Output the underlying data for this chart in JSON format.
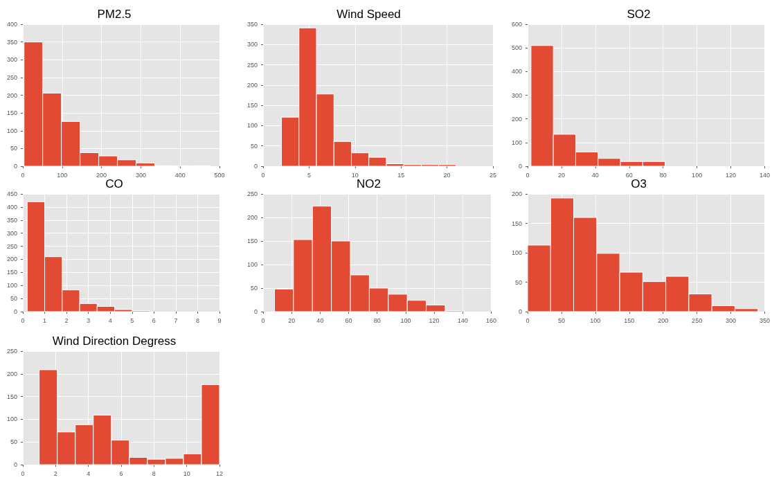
{
  "chart_data": [
    {
      "type": "histogram",
      "title": "PM2.5",
      "color": "#e24a33",
      "grid": true,
      "bins": [
        3,
        50.5,
        98,
        145.5,
        193,
        240.5,
        288,
        335.5,
        383,
        430.5,
        478
      ],
      "values": [
        350,
        206,
        126,
        38,
        29,
        18,
        9,
        1,
        1,
        1
      ],
      "xlim": [
        0,
        500
      ],
      "xticks": [
        0,
        100,
        200,
        300,
        400,
        500
      ],
      "ylim": [
        0,
        400
      ],
      "yticks": [
        0,
        50,
        100,
        150,
        200,
        250,
        300,
        350,
        400
      ]
    },
    {
      "type": "histogram",
      "title": "Wind Speed",
      "color": "#e24a33",
      "grid": true,
      "bins": [
        2,
        3.9,
        5.8,
        7.7,
        9.6,
        11.5,
        13.4,
        15.3,
        17.2,
        19.1,
        21
      ],
      "values": [
        121,
        341,
        178,
        61,
        33,
        22,
        6,
        4,
        4,
        4
      ],
      "xlim": [
        0,
        25
      ],
      "xticks": [
        0,
        5,
        10,
        15,
        20,
        25
      ],
      "ylim": [
        0,
        350
      ],
      "yticks": [
        0,
        50,
        100,
        150,
        200,
        250,
        300,
        350
      ]
    },
    {
      "type": "histogram",
      "title": "SO2",
      "color": "#e24a33",
      "grid": true,
      "bins": [
        2,
        15.2,
        28.4,
        41.6,
        54.8,
        68,
        81.2,
        94.4,
        107.6,
        120.8,
        134
      ],
      "values": [
        510,
        135,
        60,
        33,
        20,
        20,
        0,
        null,
        null,
        null
      ],
      "xlim": [
        0,
        140
      ],
      "xticks": [
        0,
        20,
        40,
        60,
        80,
        100,
        120,
        140
      ],
      "ylim": [
        0,
        600
      ],
      "yticks": [
        0,
        100,
        200,
        300,
        400,
        500,
        600
      ]
    },
    {
      "type": "histogram",
      "title": "CO",
      "color": "#e24a33",
      "grid": true,
      "bins": [
        0.2,
        1,
        1.8,
        2.6,
        3.4,
        4.2,
        5,
        5.8,
        6.6,
        7.4,
        8.2
      ],
      "values": [
        420,
        210,
        83,
        31,
        20,
        8,
        4,
        0,
        null,
        null
      ],
      "xlim": [
        0,
        9
      ],
      "xticks": [
        0,
        1,
        2,
        3,
        4,
        5,
        6,
        7,
        8,
        9
      ],
      "ylim": [
        0,
        450
      ],
      "yticks": [
        0,
        50,
        100,
        150,
        200,
        250,
        300,
        350,
        400,
        450
      ]
    },
    {
      "type": "histogram",
      "title": "NO2",
      "color": "#e24a33",
      "grid": true,
      "bins": [
        8,
        21.3,
        34.6,
        47.9,
        61.2,
        74.5,
        87.8,
        101.1,
        114.4,
        127.7,
        141
      ],
      "values": [
        48,
        153,
        224,
        150,
        78,
        50,
        37,
        24,
        14,
        2
      ],
      "xlim": [
        0,
        160
      ],
      "xticks": [
        0,
        20,
        40,
        60,
        80,
        100,
        120,
        140,
        160
      ],
      "ylim": [
        0,
        250
      ],
      "yticks": [
        0,
        50,
        100,
        150,
        200,
        250
      ]
    },
    {
      "type": "histogram",
      "title": "O3",
      "color": "#e24a33",
      "grid": true,
      "bins": [
        0,
        34,
        68,
        102,
        136,
        170,
        204,
        238,
        272,
        306,
        340
      ],
      "values": [
        113,
        193,
        160,
        99,
        67,
        51,
        60,
        30,
        10,
        5
      ],
      "xlim": [
        0,
        350
      ],
      "xticks": [
        0,
        50,
        100,
        150,
        200,
        250,
        300,
        350
      ],
      "ylim": [
        0,
        200
      ],
      "yticks": [
        0,
        50,
        100,
        150,
        200
      ]
    },
    {
      "type": "histogram",
      "title": "Wind Direction Degress",
      "color": "#e24a33",
      "grid": true,
      "bins": [
        1,
        2.1,
        3.2,
        4.3,
        5.4,
        6.5,
        7.6,
        8.7,
        9.8,
        10.9,
        12
      ],
      "values": [
        209,
        72,
        88,
        109,
        54,
        16,
        12,
        14,
        24,
        176
      ],
      "xlim": [
        0,
        12
      ],
      "xticks": [
        0,
        2,
        4,
        6,
        8,
        10,
        12
      ],
      "ylim": [
        0,
        250
      ],
      "yticks": [
        0,
        50,
        100,
        150,
        200,
        250
      ]
    }
  ]
}
